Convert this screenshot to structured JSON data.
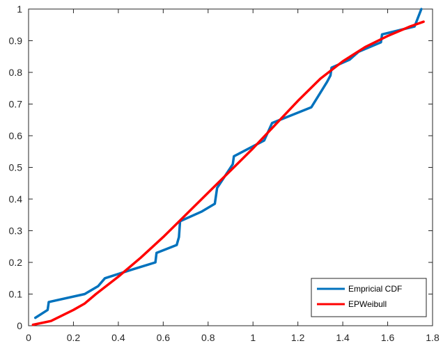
{
  "chart_data": {
    "type": "line",
    "title": "",
    "xlabel": "",
    "ylabel": "",
    "xlim": [
      0,
      1.8
    ],
    "ylim": [
      0,
      1
    ],
    "xticks": [
      0,
      0.2,
      0.4,
      0.6,
      0.8,
      1,
      1.2,
      1.4,
      1.6,
      1.8
    ],
    "xtick_labels": [
      "0",
      "0.2",
      "0.4",
      "0.6",
      "0.8",
      "1",
      "1.2",
      "1.4",
      "1.6",
      "1.8"
    ],
    "yticks": [
      0,
      0.1,
      0.2,
      0.3,
      0.4,
      0.5,
      0.6,
      0.7,
      0.8,
      0.9,
      1
    ],
    "ytick_labels": [
      "0",
      "0.1",
      "0.2",
      "0.3",
      "0.4",
      "0.5",
      "0.6",
      "0.7",
      "0.8",
      "0.9",
      "1"
    ],
    "grid": false,
    "legend_position": "bottom-right",
    "series": [
      {
        "name": "Empricial CDF",
        "color": "#0072BD",
        "x": [
          0.03,
          0.085,
          0.09,
          0.25,
          0.31,
          0.34,
          0.45,
          0.565,
          0.57,
          0.66,
          0.67,
          0.675,
          0.77,
          0.83,
          0.84,
          0.91,
          0.915,
          1.05,
          1.085,
          1.26,
          1.33,
          1.345,
          1.35,
          1.43,
          1.47,
          1.57,
          1.575,
          1.72,
          1.75
        ],
        "y": [
          0.025,
          0.05,
          0.075,
          0.1,
          0.125,
          0.15,
          0.175,
          0.2,
          0.23,
          0.255,
          0.28,
          0.33,
          0.36,
          0.385,
          0.435,
          0.51,
          0.535,
          0.585,
          0.64,
          0.69,
          0.77,
          0.79,
          0.815,
          0.84,
          0.865,
          0.895,
          0.92,
          0.945,
          1.0
        ]
      },
      {
        "name": "EPWeibull",
        "color": "#FF0000",
        "x": [
          0.02,
          0.1,
          0.2,
          0.25,
          0.3,
          0.4,
          0.5,
          0.6,
          0.7,
          0.8,
          0.9,
          1.0,
          1.1,
          1.2,
          1.3,
          1.4,
          1.5,
          1.6,
          1.7,
          1.76
        ],
        "y": [
          0.003,
          0.015,
          0.05,
          0.07,
          0.1,
          0.155,
          0.215,
          0.28,
          0.35,
          0.42,
          0.49,
          0.56,
          0.635,
          0.71,
          0.78,
          0.835,
          0.88,
          0.915,
          0.945,
          0.96
        ]
      }
    ]
  }
}
